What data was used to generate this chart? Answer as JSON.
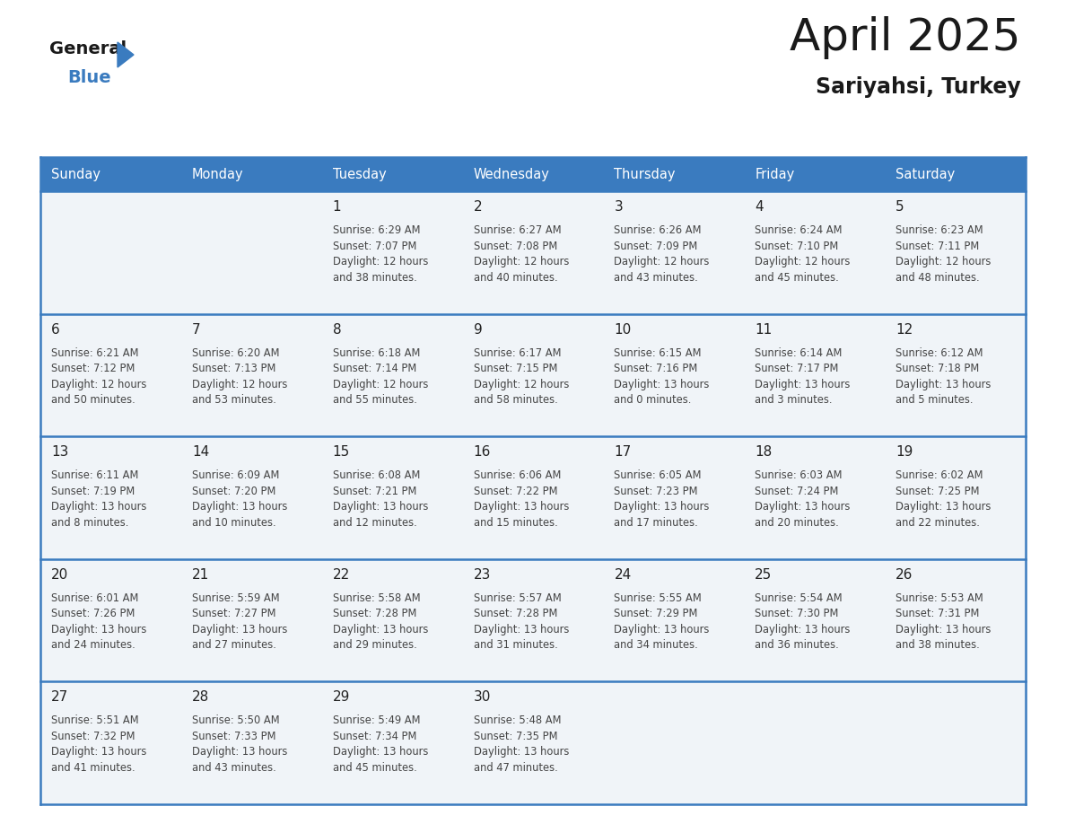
{
  "title": "April 2025",
  "subtitle": "Sariyahsi, Turkey",
  "header_bg": "#3a7bbf",
  "header_text_color": "#ffffff",
  "cell_bg": "#f0f4f8",
  "border_color": "#3a7bbf",
  "row_border_color": "#3a7bbf",
  "day_names": [
    "Sunday",
    "Monday",
    "Tuesday",
    "Wednesday",
    "Thursday",
    "Friday",
    "Saturday"
  ],
  "title_color": "#1a1a1a",
  "subtitle_color": "#1a1a1a",
  "day_number_color": "#222222",
  "info_color": "#444444",
  "calendar": [
    [
      {
        "day": 0
      },
      {
        "day": 0
      },
      {
        "day": 1,
        "sunrise": "6:29 AM",
        "sunset": "7:07 PM",
        "daylight_hours": 12,
        "daylight_minutes": 38
      },
      {
        "day": 2,
        "sunrise": "6:27 AM",
        "sunset": "7:08 PM",
        "daylight_hours": 12,
        "daylight_minutes": 40
      },
      {
        "day": 3,
        "sunrise": "6:26 AM",
        "sunset": "7:09 PM",
        "daylight_hours": 12,
        "daylight_minutes": 43
      },
      {
        "day": 4,
        "sunrise": "6:24 AM",
        "sunset": "7:10 PM",
        "daylight_hours": 12,
        "daylight_minutes": 45
      },
      {
        "day": 5,
        "sunrise": "6:23 AM",
        "sunset": "7:11 PM",
        "daylight_hours": 12,
        "daylight_minutes": 48
      }
    ],
    [
      {
        "day": 6,
        "sunrise": "6:21 AM",
        "sunset": "7:12 PM",
        "daylight_hours": 12,
        "daylight_minutes": 50
      },
      {
        "day": 7,
        "sunrise": "6:20 AM",
        "sunset": "7:13 PM",
        "daylight_hours": 12,
        "daylight_minutes": 53
      },
      {
        "day": 8,
        "sunrise": "6:18 AM",
        "sunset": "7:14 PM",
        "daylight_hours": 12,
        "daylight_minutes": 55
      },
      {
        "day": 9,
        "sunrise": "6:17 AM",
        "sunset": "7:15 PM",
        "daylight_hours": 12,
        "daylight_minutes": 58
      },
      {
        "day": 10,
        "sunrise": "6:15 AM",
        "sunset": "7:16 PM",
        "daylight_hours": 13,
        "daylight_minutes": 0
      },
      {
        "day": 11,
        "sunrise": "6:14 AM",
        "sunset": "7:17 PM",
        "daylight_hours": 13,
        "daylight_minutes": 3
      },
      {
        "day": 12,
        "sunrise": "6:12 AM",
        "sunset": "7:18 PM",
        "daylight_hours": 13,
        "daylight_minutes": 5
      }
    ],
    [
      {
        "day": 13,
        "sunrise": "6:11 AM",
        "sunset": "7:19 PM",
        "daylight_hours": 13,
        "daylight_minutes": 8
      },
      {
        "day": 14,
        "sunrise": "6:09 AM",
        "sunset": "7:20 PM",
        "daylight_hours": 13,
        "daylight_minutes": 10
      },
      {
        "day": 15,
        "sunrise": "6:08 AM",
        "sunset": "7:21 PM",
        "daylight_hours": 13,
        "daylight_minutes": 12
      },
      {
        "day": 16,
        "sunrise": "6:06 AM",
        "sunset": "7:22 PM",
        "daylight_hours": 13,
        "daylight_minutes": 15
      },
      {
        "day": 17,
        "sunrise": "6:05 AM",
        "sunset": "7:23 PM",
        "daylight_hours": 13,
        "daylight_minutes": 17
      },
      {
        "day": 18,
        "sunrise": "6:03 AM",
        "sunset": "7:24 PM",
        "daylight_hours": 13,
        "daylight_minutes": 20
      },
      {
        "day": 19,
        "sunrise": "6:02 AM",
        "sunset": "7:25 PM",
        "daylight_hours": 13,
        "daylight_minutes": 22
      }
    ],
    [
      {
        "day": 20,
        "sunrise": "6:01 AM",
        "sunset": "7:26 PM",
        "daylight_hours": 13,
        "daylight_minutes": 24
      },
      {
        "day": 21,
        "sunrise": "5:59 AM",
        "sunset": "7:27 PM",
        "daylight_hours": 13,
        "daylight_minutes": 27
      },
      {
        "day": 22,
        "sunrise": "5:58 AM",
        "sunset": "7:28 PM",
        "daylight_hours": 13,
        "daylight_minutes": 29
      },
      {
        "day": 23,
        "sunrise": "5:57 AM",
        "sunset": "7:28 PM",
        "daylight_hours": 13,
        "daylight_minutes": 31
      },
      {
        "day": 24,
        "sunrise": "5:55 AM",
        "sunset": "7:29 PM",
        "daylight_hours": 13,
        "daylight_minutes": 34
      },
      {
        "day": 25,
        "sunrise": "5:54 AM",
        "sunset": "7:30 PM",
        "daylight_hours": 13,
        "daylight_minutes": 36
      },
      {
        "day": 26,
        "sunrise": "5:53 AM",
        "sunset": "7:31 PM",
        "daylight_hours": 13,
        "daylight_minutes": 38
      }
    ],
    [
      {
        "day": 27,
        "sunrise": "5:51 AM",
        "sunset": "7:32 PM",
        "daylight_hours": 13,
        "daylight_minutes": 41
      },
      {
        "day": 28,
        "sunrise": "5:50 AM",
        "sunset": "7:33 PM",
        "daylight_hours": 13,
        "daylight_minutes": 43
      },
      {
        "day": 29,
        "sunrise": "5:49 AM",
        "sunset": "7:34 PM",
        "daylight_hours": 13,
        "daylight_minutes": 45
      },
      {
        "day": 30,
        "sunrise": "5:48 AM",
        "sunset": "7:35 PM",
        "daylight_hours": 13,
        "daylight_minutes": 47
      },
      {
        "day": 0
      },
      {
        "day": 0
      },
      {
        "day": 0
      }
    ]
  ],
  "logo_general_color": "#1a1a1a",
  "logo_blue_color": "#3a7bbf",
  "logo_triangle_color": "#3a7bbf"
}
